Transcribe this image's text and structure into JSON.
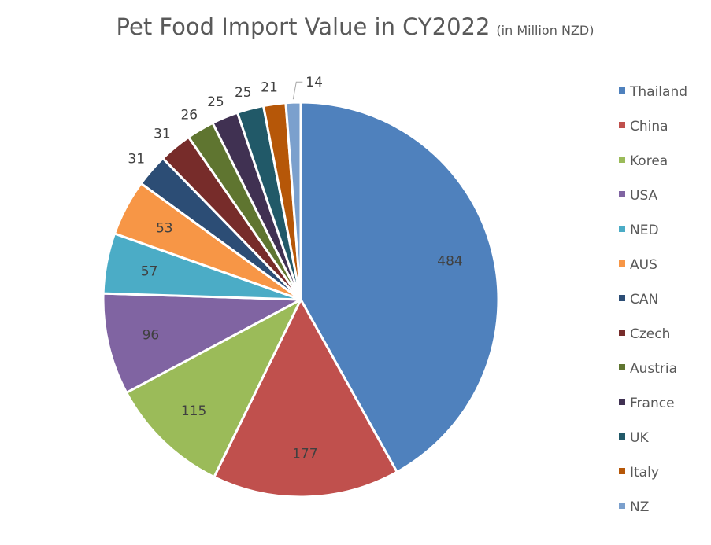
{
  "chart_data": {
    "type": "pie",
    "title": "Pet Food Import Value in CY2022",
    "subtitle": "(in Million NZD)",
    "legend_position": "right",
    "categories": [
      "Thailand",
      "China",
      "Korea",
      "USA",
      "NED",
      "AUS",
      "CAN",
      "Czech",
      "Austria",
      "France",
      "UK",
      "Italy",
      "NZ"
    ],
    "values": [
      484,
      177,
      115,
      96,
      57,
      53,
      31,
      31,
      26,
      25,
      25,
      21,
      14
    ],
    "labels": [
      "484",
      "177",
      "115",
      "96",
      "57",
      "53",
      "31",
      "31",
      "26",
      "25",
      "25",
      "21",
      "14"
    ],
    "colors": [
      "#4F81BD",
      "#C0504D",
      "#9BBB59",
      "#8064A2",
      "#4BACC6",
      "#F79646",
      "#2C4D75",
      "#772C2A",
      "#5F7530",
      "#403152",
      "#215968",
      "#B65708",
      "#7BA0CD"
    ]
  }
}
